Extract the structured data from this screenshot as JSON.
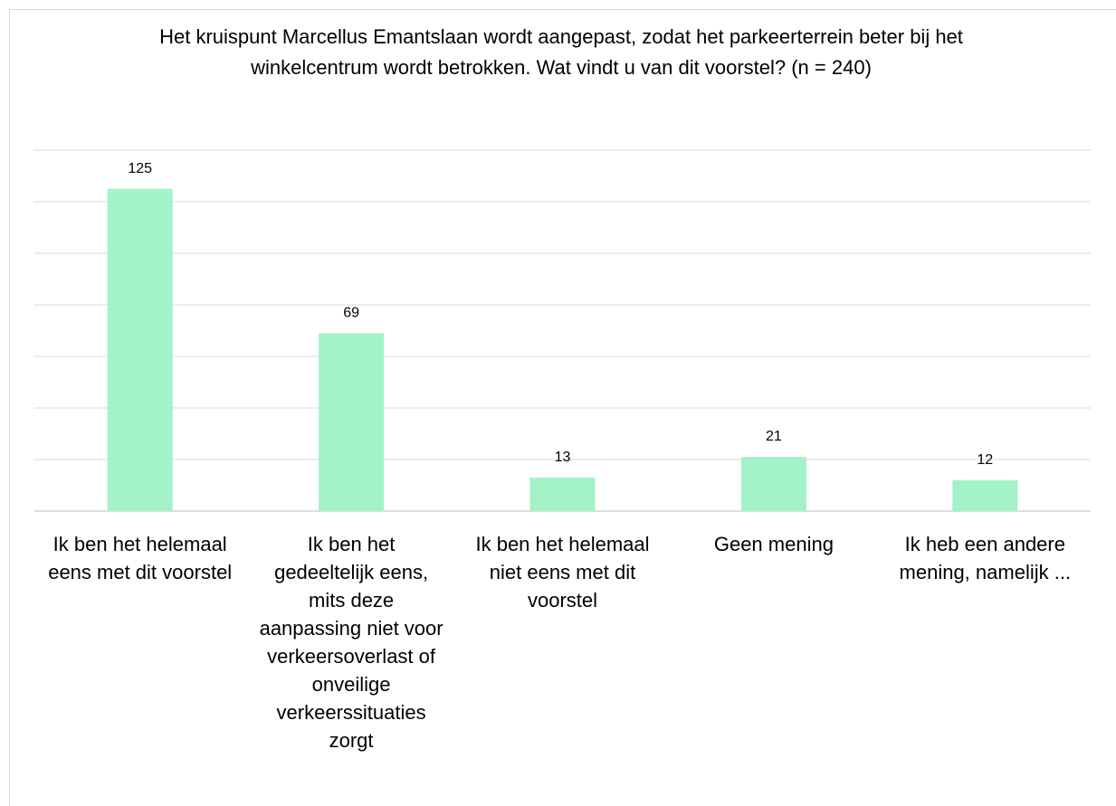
{
  "chart_data": {
    "type": "bar",
    "title": "Het kruispunt Marcellus Emantslaan wordt aangepast, zodat het parkeerterrein beter bij het winkelcentrum wordt betrokken. Wat vindt u van dit voorstel? (n = 240)",
    "categories": [
      "Ik ben het helemaal eens met dit voorstel",
      "Ik ben het gedeeltelijk eens, mits deze aanpassing niet voor verkeersoverlast of onveilige verkeerssituaties zorgt",
      "Ik ben het helemaal niet eens met dit voorstel",
      "Geen mening",
      "Ik heb een andere mening, namelijk ..."
    ],
    "values": [
      125,
      69,
      13,
      21,
      12
    ],
    "color": "#a3f2c8",
    "ylim": [
      0,
      140
    ],
    "yticks": [
      0,
      20,
      40,
      60,
      80,
      100,
      120,
      140
    ],
    "grid": true
  }
}
